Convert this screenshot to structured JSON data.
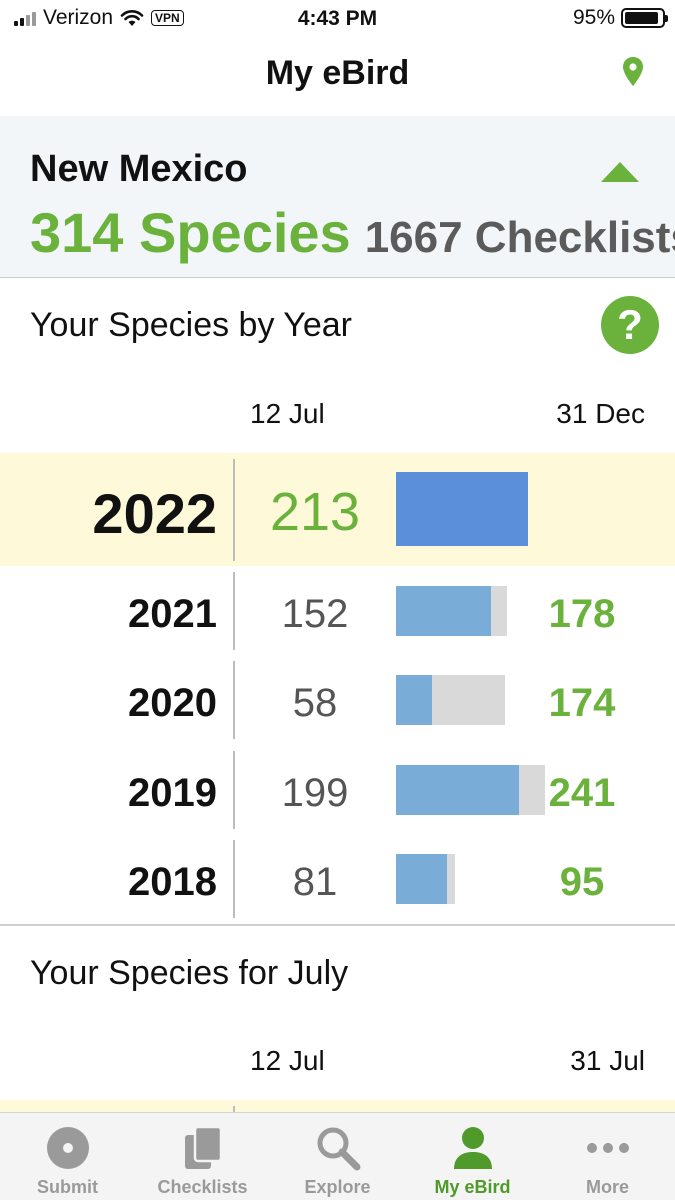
{
  "status_bar": {
    "carrier": "Verizon",
    "vpn": "VPN",
    "time": "4:43 PM",
    "battery": "95%"
  },
  "nav": {
    "title": "My eBird",
    "pin_icon": "location-pin-icon"
  },
  "region": {
    "name": "New Mexico",
    "species": "314 Species",
    "checklists": "1667 Checklists"
  },
  "species_by_year": {
    "title": "Your Species by Year",
    "col_date": "12 Jul",
    "col_end": "31 Dec",
    "rows": [
      {
        "year": "2022",
        "count": "213",
        "total": "",
        "fraction": 1.0,
        "total_fraction": 1.0
      },
      {
        "year": "2021",
        "count": "152",
        "total": "178",
        "fraction": 0.854,
        "total_fraction": 0.855
      },
      {
        "year": "2020",
        "count": "58",
        "total": "174",
        "fraction": 0.333,
        "total_fraction": 0.836
      },
      {
        "year": "2019",
        "count": "199",
        "total": "241",
        "fraction": 0.826,
        "total_fraction": 1.0
      },
      {
        "year": "2018",
        "count": "81",
        "total": "95",
        "fraction": 0.853,
        "total_fraction": 0.456
      }
    ]
  },
  "species_for_month": {
    "title": "Your Species for July",
    "col_date": "12 Jul",
    "col_end": "31 Jul"
  },
  "tabs": [
    {
      "label": "Submit",
      "icon": "submit-icon"
    },
    {
      "label": "Checklists",
      "icon": "checklists-icon"
    },
    {
      "label": "Explore",
      "icon": "search-icon"
    },
    {
      "label": "My eBird",
      "icon": "person-icon"
    },
    {
      "label": "More",
      "icon": "more-icon"
    }
  ],
  "colors": {
    "accent_green": "#6ab23c",
    "current_bar": "#5b8fd9",
    "past_bar": "#79acd6",
    "highlight_row": "#fdf9d9"
  }
}
